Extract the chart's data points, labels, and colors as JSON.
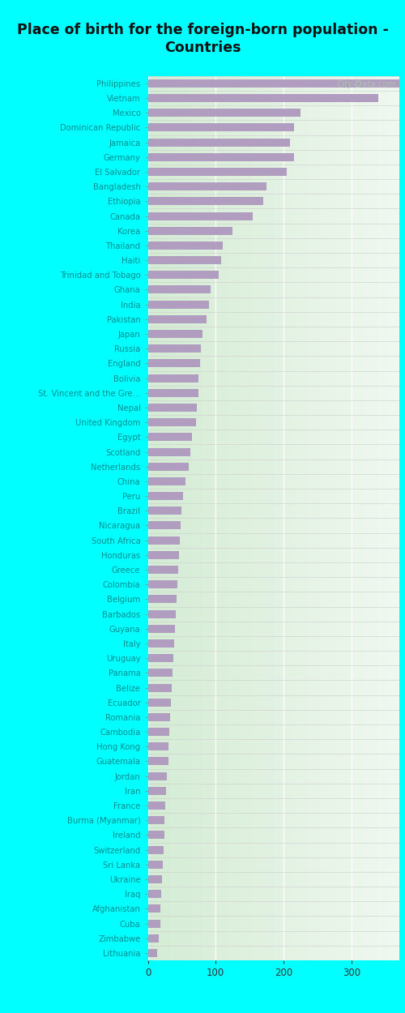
{
  "title": "Place of birth for the foreign-born population -\nCountries",
  "categories": [
    "Philippines",
    "Vietnam",
    "Mexico",
    "Dominican Republic",
    "Jamaica",
    "Germany",
    "El Salvador",
    "Bangladesh",
    "Ethiopia",
    "Canada",
    "Korea",
    "Thailand",
    "Haiti",
    "Trinidad and Tobago",
    "Ghana",
    "India",
    "Pakistan",
    "Japan",
    "Russia",
    "England",
    "Bolivia",
    "St. Vincent and the Gre...",
    "Nepal",
    "United Kingdom",
    "Egypt",
    "Scotland",
    "Netherlands",
    "China",
    "Peru",
    "Brazil",
    "Nicaragua",
    "South Africa",
    "Honduras",
    "Greece",
    "Colombia",
    "Belgium",
    "Barbados",
    "Guyana",
    "Italy",
    "Uruguay",
    "Panama",
    "Belize",
    "Ecuador",
    "Romania",
    "Cambodia",
    "Hong Kong",
    "Guatemala",
    "Jordan",
    "Iran",
    "France",
    "Burma (Myanmar)",
    "Ireland",
    "Switzerland",
    "Sri Lanka",
    "Ukraine",
    "Iraq",
    "Afghanistan",
    "Cuba",
    "Zimbabwe",
    "Lithuania"
  ],
  "values": [
    370,
    340,
    225,
    215,
    210,
    215,
    205,
    175,
    170,
    155,
    125,
    110,
    108,
    105,
    92,
    90,
    87,
    80,
    78,
    77,
    75,
    74,
    72,
    71,
    65,
    63,
    60,
    55,
    52,
    50,
    48,
    47,
    46,
    45,
    44,
    42,
    41,
    40,
    39,
    37,
    36,
    35,
    34,
    33,
    32,
    31,
    30,
    28,
    27,
    26,
    25,
    24,
    23,
    22,
    21,
    20,
    19,
    18,
    16,
    14
  ],
  "bar_color": "#b09dc0",
  "bg_color_cyan": "#00ffff",
  "bg_color_chart_left": "#d4ecd4",
  "bg_color_chart_right": "#f0f8f0",
  "title_color": "#111111",
  "label_color": "#009090",
  "watermark": "City-Data.com",
  "xlim": [
    0,
    370
  ],
  "xticks": [
    0,
    100,
    200,
    300
  ],
  "xtick_labels": [
    "0",
    "100",
    "200",
    "300"
  ],
  "bar_height": 0.55
}
